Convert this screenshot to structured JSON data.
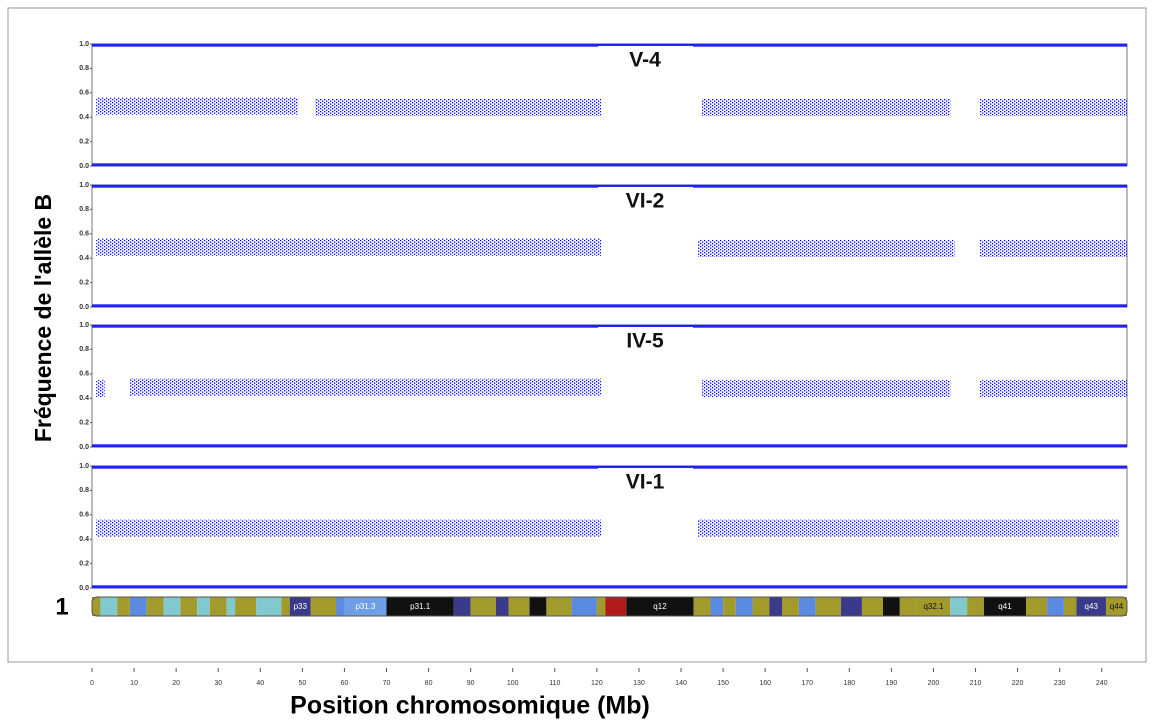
{
  "chart_data": [
    {
      "type": "scatter",
      "title": "V-4",
      "color": "#0000ff",
      "ylim": [
        0,
        1
      ],
      "yticks": [
        {
          "value": 0,
          "label": "0.0"
        },
        {
          "value": 0.2,
          "label": "0.2"
        },
        {
          "value": 0.4,
          "label": "0.4"
        },
        {
          "value": 0.6,
          "label": "0.6"
        },
        {
          "value": 0.8,
          "label": "0.8"
        },
        {
          "value": 1,
          "label": "1.0"
        }
      ],
      "homozygous": [
        0.01,
        0.99
      ],
      "heterozygous": [
        {
          "x": [
            1,
            49
          ],
          "y": 0.49
        },
        {
          "x": [
            53,
            121
          ],
          "y": 0.48
        },
        {
          "x": [
            145,
            204
          ],
          "y": 0.48
        },
        {
          "x": [
            211,
            246
          ],
          "y": 0.48
        }
      ]
    },
    {
      "type": "scatter",
      "title": "VI-2",
      "color": "#0000ff",
      "ylim": [
        0,
        1
      ],
      "yticks": [
        {
          "value": 0,
          "label": "0.0"
        },
        {
          "value": 0.2,
          "label": "0.2"
        },
        {
          "value": 0.4,
          "label": "0.4"
        },
        {
          "value": 0.6,
          "label": "0.6"
        },
        {
          "value": 0.8,
          "label": "0.8"
        },
        {
          "value": 1,
          "label": "1.0"
        }
      ],
      "homozygous": [
        0.01,
        0.99
      ],
      "heterozygous": [
        {
          "x": [
            1,
            121
          ],
          "y": 0.49
        },
        {
          "x": [
            144,
            205
          ],
          "y": 0.48
        },
        {
          "x": [
            211,
            246
          ],
          "y": 0.48
        }
      ]
    },
    {
      "type": "scatter",
      "title": "IV-5",
      "color": "#0000ff",
      "ylim": [
        0,
        1
      ],
      "yticks": [
        {
          "value": 0,
          "label": "0.0"
        },
        {
          "value": 0.2,
          "label": "0.2"
        },
        {
          "value": 0.4,
          "label": "0.4"
        },
        {
          "value": 0.6,
          "label": "0.6"
        },
        {
          "value": 0.8,
          "label": "0.8"
        },
        {
          "value": 1,
          "label": "1.0"
        }
      ],
      "homozygous": [
        0.01,
        0.99
      ],
      "heterozygous": [
        {
          "x": [
            1,
            3
          ],
          "y": 0.48
        },
        {
          "x": [
            9,
            121
          ],
          "y": 0.49
        },
        {
          "x": [
            145,
            204
          ],
          "y": 0.48
        },
        {
          "x": [
            211,
            246
          ],
          "y": 0.48
        }
      ]
    },
    {
      "type": "scatter",
      "title": "VI-1",
      "color": "#0000ff",
      "ylim": [
        0,
        1
      ],
      "yticks": [
        {
          "value": 0,
          "label": "0.0"
        },
        {
          "value": 0.2,
          "label": "0.2"
        },
        {
          "value": 0.4,
          "label": "0.4"
        },
        {
          "value": 0.6,
          "label": "0.6"
        },
        {
          "value": 0.8,
          "label": "0.8"
        },
        {
          "value": 1,
          "label": "1.0"
        }
      ],
      "homozygous": [
        0.01,
        0.99
      ],
      "heterozygous": [
        {
          "x": [
            1,
            121
          ],
          "y": 0.49
        },
        {
          "x": [
            144,
            244
          ],
          "y": 0.49
        }
      ]
    }
  ],
  "x_axis": {
    "label": "Position chromosomique (Mb)",
    "xlim": [
      0,
      246
    ],
    "xticks": [
      0,
      10,
      20,
      30,
      40,
      50,
      60,
      70,
      80,
      90,
      100,
      110,
      120,
      130,
      140,
      150,
      160,
      170,
      180,
      190,
      200,
      210,
      220,
      230,
      240
    ]
  },
  "y_axis_label": "Fréquence de l'allèle B",
  "chromosome": {
    "label": "1",
    "bands": [
      {
        "start": 0,
        "end": 2,
        "color": "#a39a2c"
      },
      {
        "start": 2,
        "end": 6,
        "color": "#7fc9cf"
      },
      {
        "start": 6,
        "end": 9,
        "color": "#a39a2c"
      },
      {
        "start": 9,
        "end": 13,
        "color": "#5b8be0"
      },
      {
        "start": 13,
        "end": 17,
        "color": "#a39a2c"
      },
      {
        "start": 17,
        "end": 21,
        "color": "#7fc9cf"
      },
      {
        "start": 21,
        "end": 25,
        "color": "#a39a2c"
      },
      {
        "start": 25,
        "end": 28,
        "color": "#7fc9cf"
      },
      {
        "start": 28,
        "end": 32,
        "color": "#a39a2c"
      },
      {
        "start": 32,
        "end": 34,
        "color": "#7fc9cf"
      },
      {
        "start": 34,
        "end": 39,
        "color": "#a39a2c"
      },
      {
        "start": 39,
        "end": 45,
        "color": "#7fc9cf"
      },
      {
        "start": 45,
        "end": 47,
        "color": "#a39a2c"
      },
      {
        "start": 47,
        "end": 52,
        "color": "#3a3a8a",
        "label": "p33"
      },
      {
        "start": 52,
        "end": 58,
        "color": "#a39a2c"
      },
      {
        "start": 58,
        "end": 60,
        "color": "#5b8be0"
      },
      {
        "start": 60,
        "end": 70,
        "color": "#6f9ee8",
        "label": "p31.3"
      },
      {
        "start": 70,
        "end": 86,
        "color": "#111111",
        "label": "p31.1"
      },
      {
        "start": 86,
        "end": 90,
        "color": "#3a3a8a"
      },
      {
        "start": 90,
        "end": 96,
        "color": "#a39a2c"
      },
      {
        "start": 96,
        "end": 99,
        "color": "#3a3a8a"
      },
      {
        "start": 99,
        "end": 104,
        "color": "#a39a2c"
      },
      {
        "start": 104,
        "end": 108,
        "color": "#111111"
      },
      {
        "start": 108,
        "end": 114,
        "color": "#a39a2c"
      },
      {
        "start": 114,
        "end": 120,
        "color": "#5b8be0"
      },
      {
        "start": 120,
        "end": 122,
        "color": "#a39a2c"
      },
      {
        "start": 122,
        "end": 127,
        "color": "#b01c1c"
      },
      {
        "start": 127,
        "end": 143,
        "color": "#111111",
        "label": "q12"
      },
      {
        "start": 143,
        "end": 147,
        "color": "#a39a2c"
      },
      {
        "start": 147,
        "end": 150,
        "color": "#5b8be0"
      },
      {
        "start": 150,
        "end": 153,
        "color": "#a39a2c"
      },
      {
        "start": 153,
        "end": 157,
        "color": "#5b8be0"
      },
      {
        "start": 157,
        "end": 161,
        "color": "#a39a2c"
      },
      {
        "start": 161,
        "end": 164,
        "color": "#3a3a8a"
      },
      {
        "start": 164,
        "end": 168,
        "color": "#a39a2c"
      },
      {
        "start": 168,
        "end": 172,
        "color": "#5b8be0"
      },
      {
        "start": 172,
        "end": 178,
        "color": "#a39a2c"
      },
      {
        "start": 178,
        "end": 183,
        "color": "#3a3a8a"
      },
      {
        "start": 183,
        "end": 188,
        "color": "#a39a2c"
      },
      {
        "start": 188,
        "end": 192,
        "color": "#111111"
      },
      {
        "start": 192,
        "end": 196,
        "color": "#a39a2c"
      },
      {
        "start": 196,
        "end": 204,
        "color": "#a39a2c",
        "label": "q32.1"
      },
      {
        "start": 204,
        "end": 208,
        "color": "#7fc9cf"
      },
      {
        "start": 208,
        "end": 212,
        "color": "#a39a2c"
      },
      {
        "start": 212,
        "end": 222,
        "color": "#111111",
        "label": "q41"
      },
      {
        "start": 222,
        "end": 227,
        "color": "#a39a2c"
      },
      {
        "start": 227,
        "end": 231,
        "color": "#5b8be0"
      },
      {
        "start": 231,
        "end": 234,
        "color": "#a39a2c"
      },
      {
        "start": 234,
        "end": 241,
        "color": "#3a3a8a",
        "label": "q43"
      },
      {
        "start": 241,
        "end": 246,
        "color": "#a39a2c",
        "label": "q44"
      }
    ]
  }
}
